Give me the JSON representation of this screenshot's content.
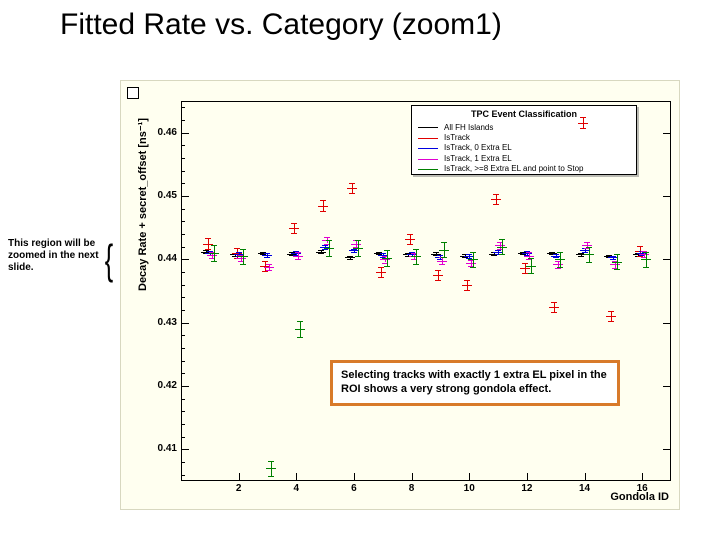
{
  "title": "Fitted Rate vs. Category (zoom1)",
  "annotation": "This region will be zoomed in the next slide.",
  "callout": "Selecting tracks with exactly 1 extra EL pixel in the ROI shows a very strong gondola effect.",
  "chart": {
    "type": "scatter",
    "y_axis_label": "Decay Rate + secret_offset [ns⁻¹]",
    "y_exponent": "×10⁻³",
    "x_axis_label": "Gondola ID",
    "background_color": "#fffff0",
    "legend": {
      "title": "TPC Event Classification",
      "items": [
        {
          "label": "All FH Islands",
          "color": "#000000"
        },
        {
          "label": "IsTrack",
          "color": "#e00000"
        },
        {
          "label": "IsTrack, 0 Extra EL",
          "color": "#0000e0"
        },
        {
          "label": "IsTrack, 1 Extra EL",
          "color": "#e000d0"
        },
        {
          "label": "IsTrack, >=8 Extra EL and point to Stop",
          "color": "#008000"
        }
      ]
    },
    "ylim": [
      0.405,
      0.465
    ],
    "yticks": [
      0.41,
      0.42,
      0.43,
      0.44,
      0.45,
      0.46
    ],
    "xlim": [
      0,
      17
    ],
    "xticks": [
      2,
      4,
      6,
      8,
      10,
      12,
      14,
      16
    ],
    "series": [
      {
        "color": "#000000",
        "points": [
          {
            "x": 1,
            "y": 0.4412
          },
          {
            "x": 2,
            "y": 0.4408
          },
          {
            "x": 3,
            "y": 0.441
          },
          {
            "x": 4,
            "y": 0.4409
          },
          {
            "x": 5,
            "y": 0.4412
          },
          {
            "x": 6,
            "y": 0.4403
          },
          {
            "x": 7,
            "y": 0.441
          },
          {
            "x": 8,
            "y": 0.4408
          },
          {
            "x": 9,
            "y": 0.4409
          },
          {
            "x": 10,
            "y": 0.4406
          },
          {
            "x": 11,
            "y": 0.4409
          },
          {
            "x": 12,
            "y": 0.441
          },
          {
            "x": 13,
            "y": 0.441
          },
          {
            "x": 14,
            "y": 0.4408
          },
          {
            "x": 15,
            "y": 0.4405
          },
          {
            "x": 16,
            "y": 0.4408
          }
        ],
        "err": 0.0002
      },
      {
        "color": "#e00000",
        "points": [
          {
            "x": 1,
            "y": 0.4425
          },
          {
            "x": 2,
            "y": 0.441
          },
          {
            "x": 3,
            "y": 0.439
          },
          {
            "x": 4,
            "y": 0.445
          },
          {
            "x": 5,
            "y": 0.4485
          },
          {
            "x": 6,
            "y": 0.4512
          },
          {
            "x": 7,
            "y": 0.438
          },
          {
            "x": 8,
            "y": 0.4432
          },
          {
            "x": 9,
            "y": 0.4375
          },
          {
            "x": 10,
            "y": 0.436
          },
          {
            "x": 11,
            "y": 0.4495
          },
          {
            "x": 12,
            "y": 0.4386
          },
          {
            "x": 13,
            "y": 0.4325
          },
          {
            "x": 14,
            "y": 0.4616
          },
          {
            "x": 15,
            "y": 0.431
          },
          {
            "x": 16,
            "y": 0.4413
          }
        ],
        "err": 0.0008
      },
      {
        "color": "#0000e0",
        "points": [
          {
            "x": 1,
            "y": 0.441
          },
          {
            "x": 2,
            "y": 0.4408
          },
          {
            "x": 3,
            "y": 0.4407
          },
          {
            "x": 4,
            "y": 0.441
          },
          {
            "x": 5,
            "y": 0.4419
          },
          {
            "x": 6,
            "y": 0.4414
          },
          {
            "x": 7,
            "y": 0.4407
          },
          {
            "x": 8,
            "y": 0.4409
          },
          {
            "x": 9,
            "y": 0.4404
          },
          {
            "x": 10,
            "y": 0.4405
          },
          {
            "x": 11,
            "y": 0.4412
          },
          {
            "x": 12,
            "y": 0.441
          },
          {
            "x": 13,
            "y": 0.4406
          },
          {
            "x": 14,
            "y": 0.4415
          },
          {
            "x": 15,
            "y": 0.4403
          },
          {
            "x": 16,
            "y": 0.441
          }
        ],
        "err": 0.0003
      },
      {
        "color": "#e000d0",
        "points": [
          {
            "x": 1,
            "y": 0.4407
          },
          {
            "x": 2,
            "y": 0.4402
          },
          {
            "x": 3,
            "y": 0.4388
          },
          {
            "x": 4,
            "y": 0.4406
          },
          {
            "x": 5,
            "y": 0.443
          },
          {
            "x": 6,
            "y": 0.4425
          },
          {
            "x": 7,
            "y": 0.44
          },
          {
            "x": 8,
            "y": 0.4405
          },
          {
            "x": 9,
            "y": 0.4398
          },
          {
            "x": 10,
            "y": 0.4394
          },
          {
            "x": 11,
            "y": 0.4422
          },
          {
            "x": 12,
            "y": 0.4406
          },
          {
            "x": 13,
            "y": 0.4392
          },
          {
            "x": 14,
            "y": 0.4423
          },
          {
            "x": 15,
            "y": 0.4392
          },
          {
            "x": 16,
            "y": 0.4408
          }
        ],
        "err": 0.0005
      },
      {
        "color": "#008000",
        "points": [
          {
            "x": 1,
            "y": 0.441
          },
          {
            "x": 2,
            "y": 0.4405
          },
          {
            "x": 3,
            "y": 0.407
          },
          {
            "x": 4,
            "y": 0.429
          },
          {
            "x": 5,
            "y": 0.4418
          },
          {
            "x": 6,
            "y": 0.4418
          },
          {
            "x": 7,
            "y": 0.4402
          },
          {
            "x": 8,
            "y": 0.4405
          },
          {
            "x": 9,
            "y": 0.4415
          },
          {
            "x": 10,
            "y": 0.44
          },
          {
            "x": 11,
            "y": 0.442
          },
          {
            "x": 12,
            "y": 0.439
          },
          {
            "x": 13,
            "y": 0.44
          },
          {
            "x": 14,
            "y": 0.4408
          },
          {
            "x": 15,
            "y": 0.4396
          },
          {
            "x": 16,
            "y": 0.44
          }
        ],
        "err": 0.0012
      }
    ],
    "callout_border_color": "#d87a2a"
  }
}
